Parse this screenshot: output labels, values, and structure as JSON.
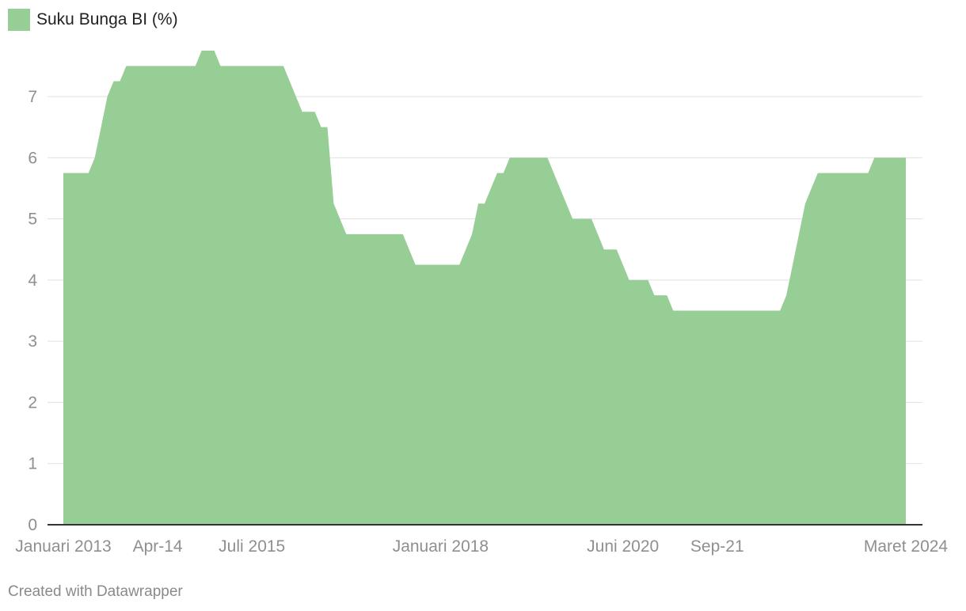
{
  "chart_data": {
    "type": "area",
    "series": [
      {
        "name": "Suku Bunga BI (%)",
        "color": "#97ce96",
        "points": [
          [
            "2013-01",
            5.75
          ],
          [
            "2013-05",
            5.75
          ],
          [
            "2013-06",
            6.0
          ],
          [
            "2013-07",
            6.5
          ],
          [
            "2013-08",
            7.0
          ],
          [
            "2013-09",
            7.25
          ],
          [
            "2013-10",
            7.25
          ],
          [
            "2013-11",
            7.5
          ],
          [
            "2014-10",
            7.5
          ],
          [
            "2014-11",
            7.75
          ],
          [
            "2015-01",
            7.75
          ],
          [
            "2015-02",
            7.5
          ],
          [
            "2015-12",
            7.5
          ],
          [
            "2016-01",
            7.25
          ],
          [
            "2016-02",
            7.0
          ],
          [
            "2016-03",
            6.75
          ],
          [
            "2016-05",
            6.75
          ],
          [
            "2016-06",
            6.5
          ],
          [
            "2016-07",
            6.5
          ],
          [
            "2016-08",
            5.25
          ],
          [
            "2016-09",
            5.0
          ],
          [
            "2016-10",
            4.75
          ],
          [
            "2017-07",
            4.75
          ],
          [
            "2017-08",
            4.5
          ],
          [
            "2017-09",
            4.25
          ],
          [
            "2018-04",
            4.25
          ],
          [
            "2018-05",
            4.5
          ],
          [
            "2018-06",
            4.75
          ],
          [
            "2018-07",
            5.25
          ],
          [
            "2018-08",
            5.25
          ],
          [
            "2018-09",
            5.5
          ],
          [
            "2018-10",
            5.75
          ],
          [
            "2018-11",
            5.75
          ],
          [
            "2018-12",
            6.0
          ],
          [
            "2019-06",
            6.0
          ],
          [
            "2019-07",
            5.75
          ],
          [
            "2019-08",
            5.5
          ],
          [
            "2019-09",
            5.25
          ],
          [
            "2019-10",
            5.0
          ],
          [
            "2020-01",
            5.0
          ],
          [
            "2020-02",
            4.75
          ],
          [
            "2020-03",
            4.5
          ],
          [
            "2020-05",
            4.5
          ],
          [
            "2020-06",
            4.25
          ],
          [
            "2020-07",
            4.0
          ],
          [
            "2020-10",
            4.0
          ],
          [
            "2020-11",
            3.75
          ],
          [
            "2021-01",
            3.75
          ],
          [
            "2021-02",
            3.5
          ],
          [
            "2022-07",
            3.5
          ],
          [
            "2022-08",
            3.75
          ],
          [
            "2022-09",
            4.25
          ],
          [
            "2022-10",
            4.75
          ],
          [
            "2022-11",
            5.25
          ],
          [
            "2022-12",
            5.5
          ],
          [
            "2023-01",
            5.75
          ],
          [
            "2023-09",
            5.75
          ],
          [
            "2023-10",
            6.0
          ],
          [
            "2024-03",
            6.0
          ]
        ]
      }
    ],
    "x_ticks": [
      {
        "date": "2013-01",
        "label": "Januari 2013"
      },
      {
        "date": "2014-04",
        "label": "Apr-14"
      },
      {
        "date": "2015-07",
        "label": "Juli 2015"
      },
      {
        "date": "2018-01",
        "label": "Januari 2018"
      },
      {
        "date": "2020-06",
        "label": "Juni 2020"
      },
      {
        "date": "2021-09",
        "label": "Sep-21"
      },
      {
        "date": "2024-03",
        "label": "Maret 2024"
      }
    ],
    "y_ticks": [
      "0",
      "1",
      "2",
      "3",
      "4",
      "5",
      "6",
      "7"
    ],
    "ylim": [
      0,
      7.75
    ],
    "xlim": [
      "2013-01",
      "2024-03"
    ],
    "grid": true,
    "legend_position": "top-left"
  },
  "legend": {
    "label": "Suku Bunga BI (%)"
  },
  "footer": {
    "credit": "Created with Datawrapper"
  }
}
